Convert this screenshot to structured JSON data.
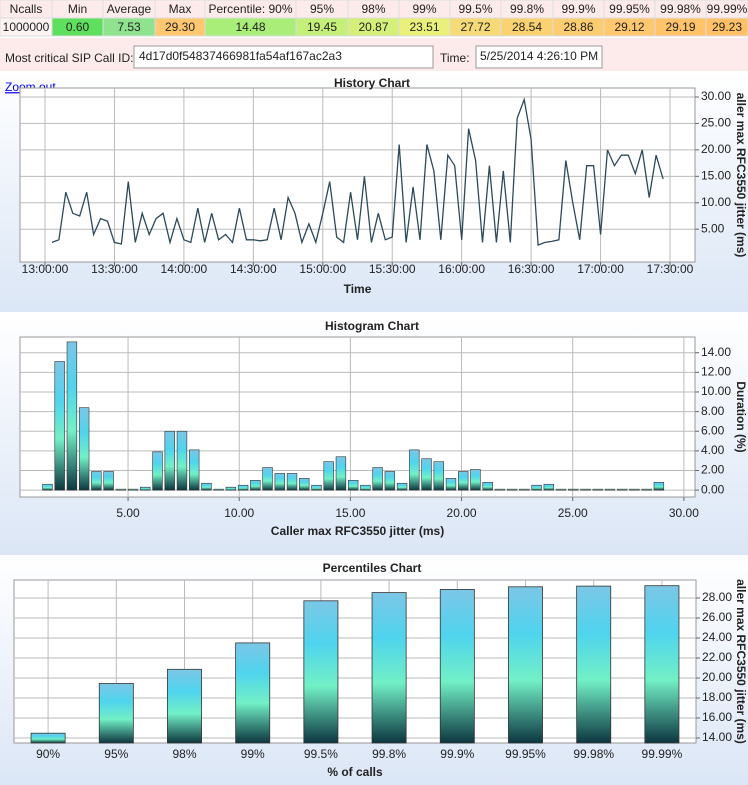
{
  "stats": {
    "headers": [
      "Ncalls",
      "Min",
      "Average",
      "Max",
      "Percentile: 90%",
      "95%",
      "98%",
      "99%",
      "99.5%",
      "99.8%",
      "99.9%",
      "99.95%",
      "99.98%",
      "99.99%"
    ],
    "values": [
      "1000000",
      "0.60",
      "7.53",
      "29.30",
      "14.48",
      "19.45",
      "20.87",
      "23.51",
      "27.72",
      "28.54",
      "28.86",
      "29.12",
      "29.19",
      "29.23"
    ],
    "colors": [
      "#fdf3f3",
      "#5ee05e",
      "#8fe38f",
      "#ffc870",
      "#a8ee78",
      "#c4f07a",
      "#d4f07a",
      "#eaf07a",
      "#f6da78",
      "#fad272",
      "#fccc70",
      "#ffc870",
      "#ffc46a",
      "#ffc068"
    ]
  },
  "call_id": {
    "label": "Most critical SIP Call ID:",
    "value": "4d17d0f54837466981fa54af167ac2a3"
  },
  "time": {
    "label": "Time:",
    "value": "5/25/2014 4:26:10 PM"
  },
  "zoom_out": "Zoom out",
  "chart_data": [
    {
      "type": "line",
      "title": "History Chart",
      "x_label": "Time",
      "y_label": "aller max RFC3550 jitter (ms)",
      "color": "#2d4a5a",
      "x": [
        "13:03:00",
        "13:06:00",
        "13:09:00",
        "13:12:00",
        "13:15:00",
        "13:18:00",
        "13:21:00",
        "13:24:00",
        "13:27:00",
        "13:30:00",
        "13:33:00",
        "13:36:00",
        "13:39:00",
        "13:42:00",
        "13:45:00",
        "13:48:00",
        "13:51:00",
        "13:54:00",
        "13:57:00",
        "14:00:00",
        "14:03:00",
        "14:06:00",
        "14:09:00",
        "14:12:00",
        "14:15:00",
        "14:18:00",
        "14:21:00",
        "14:24:00",
        "14:27:00",
        "14:30:00",
        "14:33:00",
        "14:36:00",
        "14:39:00",
        "14:42:00",
        "14:45:00",
        "14:48:00",
        "14:51:00",
        "14:54:00",
        "14:57:00",
        "15:00:00",
        "15:03:00",
        "15:06:00",
        "15:09:00",
        "15:12:00",
        "15:15:00",
        "15:18:00",
        "15:21:00",
        "15:24:00",
        "15:27:00",
        "15:30:00",
        "15:33:00",
        "15:36:00",
        "15:39:00",
        "15:42:00",
        "15:45:00",
        "15:48:00",
        "15:51:00",
        "15:54:00",
        "15:57:00",
        "16:00:00",
        "16:03:00",
        "16:06:00",
        "16:09:00",
        "16:12:00",
        "16:15:00",
        "16:18:00",
        "16:21:00",
        "16:24:00",
        "16:27:00",
        "16:30:00",
        "16:33:00",
        "16:36:00",
        "16:39:00",
        "16:42:00",
        "16:45:00",
        "16:48:00",
        "16:51:00",
        "16:54:00",
        "16:57:00",
        "17:00:00",
        "17:03:00",
        "17:06:00",
        "17:09:00",
        "17:12:00",
        "17:15:00",
        "17:18:00",
        "17:21:00",
        "17:24:00",
        "17:27:00"
      ],
      "values": [
        2.5,
        3,
        12,
        8,
        7.5,
        12,
        4,
        7,
        6.5,
        2.5,
        2.2,
        14,
        2.5,
        8,
        4,
        7,
        8,
        2.5,
        7,
        3,
        2.5,
        9,
        2.5,
        8,
        3,
        4,
        2.5,
        9,
        3,
        3,
        2.8,
        3,
        9,
        3,
        11,
        8,
        2.5,
        6,
        2.5,
        8,
        14,
        3.5,
        2.5,
        12,
        3,
        15,
        2.5,
        8,
        3,
        3.5,
        21,
        2.5,
        13,
        3,
        21,
        16,
        3,
        19,
        17,
        3,
        24,
        18,
        2.5,
        17,
        2.5,
        16,
        2.5,
        26,
        29.5,
        22,
        2,
        2.5,
        2.7,
        3,
        18,
        10,
        3,
        17,
        17,
        4,
        20,
        17,
        19,
        19,
        15.5,
        20,
        11,
        19,
        14.5
      ],
      "xlim": [
        "12:49:12",
        "17:40:48"
      ],
      "xticks": [
        "13:00:00",
        "13:30:00",
        "14:00:00",
        "14:30:00",
        "15:00:00",
        "15:30:00",
        "16:00:00",
        "16:30:00",
        "17:00:00",
        "17:30:00"
      ],
      "ylim": [
        -1.2,
        31.7
      ],
      "yticks": [
        {
          "value": 5,
          "label": "5.00"
        },
        {
          "value": 10,
          "label": "10.00"
        },
        {
          "value": 15,
          "label": "15.00"
        },
        {
          "value": 20,
          "label": "20.00"
        },
        {
          "value": 25,
          "label": "25.00"
        },
        {
          "value": 30,
          "label": "30.00"
        }
      ],
      "grid": true
    },
    {
      "type": "histogram",
      "title": "Histogram Chart",
      "x_label": "Caller max RFC3550 jitter (ms)",
      "y_label": "Duration (%)",
      "gradient": [
        "#7cc6e6",
        "#4fd4ee",
        "#72f0c6",
        "#0d3640"
      ],
      "bins": [
        1.1,
        1.65,
        2.2,
        2.75,
        3.3,
        3.85,
        4.4,
        4.95,
        5.5,
        6.05,
        6.6,
        7.15,
        7.7,
        8.25,
        8.8,
        9.35,
        9.9,
        10.45,
        11,
        11.55,
        12.1,
        12.65,
        13.2,
        13.75,
        14.3,
        14.85,
        15.4,
        15.95,
        16.5,
        17.05,
        17.6,
        18.15,
        18.7,
        19.25,
        19.8,
        20.35,
        20.9,
        21.45,
        22,
        22.55,
        23.1,
        23.65,
        24.2,
        24.75,
        25.3,
        25.85,
        26.4,
        26.95,
        27.5,
        28.05,
        28.6,
        29.15
      ],
      "values": [
        0.6,
        13.1,
        15.1,
        8.4,
        1.9,
        1.9,
        0.1,
        0.1,
        0.3,
        3.9,
        6.0,
        6.0,
        4.1,
        0.7,
        0.1,
        0.3,
        0.5,
        1.0,
        2.3,
        1.7,
        1.7,
        1.2,
        0.5,
        2.9,
        3.4,
        1.0,
        0.5,
        2.3,
        1.9,
        0.7,
        4.1,
        3.2,
        2.9,
        1.2,
        1.9,
        2.1,
        0.8,
        0.1,
        0.1,
        0.1,
        0.5,
        0.6,
        0.1,
        0.1,
        0.1,
        0.1,
        0.1,
        0.1,
        0.1,
        0.1,
        0.8
      ],
      "xlim": [
        0.14,
        30.5
      ],
      "xticks": [
        {
          "value": 5,
          "label": "5.00"
        },
        {
          "value": 10,
          "label": "10.00"
        },
        {
          "value": 15,
          "label": "15.00"
        },
        {
          "value": 20,
          "label": "20.00"
        },
        {
          "value": 25,
          "label": "25.00"
        },
        {
          "value": 30,
          "label": "30.00"
        }
      ],
      "ylim": [
        -0.7,
        15.6
      ],
      "yticks": [
        {
          "value": 0,
          "label": "0.00"
        },
        {
          "value": 2,
          "label": "2.00"
        },
        {
          "value": 4,
          "label": "4.00"
        },
        {
          "value": 6,
          "label": "6.00"
        },
        {
          "value": 8,
          "label": "8.00"
        },
        {
          "value": 10,
          "label": "10.00"
        },
        {
          "value": 12,
          "label": "12.00"
        },
        {
          "value": 14,
          "label": "14.00"
        }
      ],
      "grid": true
    },
    {
      "type": "bar",
      "title": "Percentiles Chart",
      "x_label": "% of calls",
      "y_label": "aller max RFC3550 jitter (ms)",
      "gradient": [
        "#7cc6e6",
        "#4fd4ee",
        "#72f0c6",
        "#0d3640"
      ],
      "categories": [
        "90%",
        "95%",
        "98%",
        "99%",
        "99.5%",
        "99.8%",
        "99.9%",
        "99.95%",
        "99.98%",
        "99.99%"
      ],
      "values": [
        14.48,
        19.45,
        20.87,
        23.51,
        27.72,
        28.54,
        28.86,
        29.12,
        29.19,
        29.23
      ],
      "ylim": [
        13.5,
        29.8
      ],
      "yticks": [
        {
          "value": 14,
          "label": "14.00"
        },
        {
          "value": 16,
          "label": "16.00"
        },
        {
          "value": 18,
          "label": "18.00"
        },
        {
          "value": 20,
          "label": "20.00"
        },
        {
          "value": 22,
          "label": "22.00"
        },
        {
          "value": 24,
          "label": "24.00"
        },
        {
          "value": 26,
          "label": "26.00"
        },
        {
          "value": 28,
          "label": "28.00"
        }
      ],
      "grid": true
    }
  ]
}
